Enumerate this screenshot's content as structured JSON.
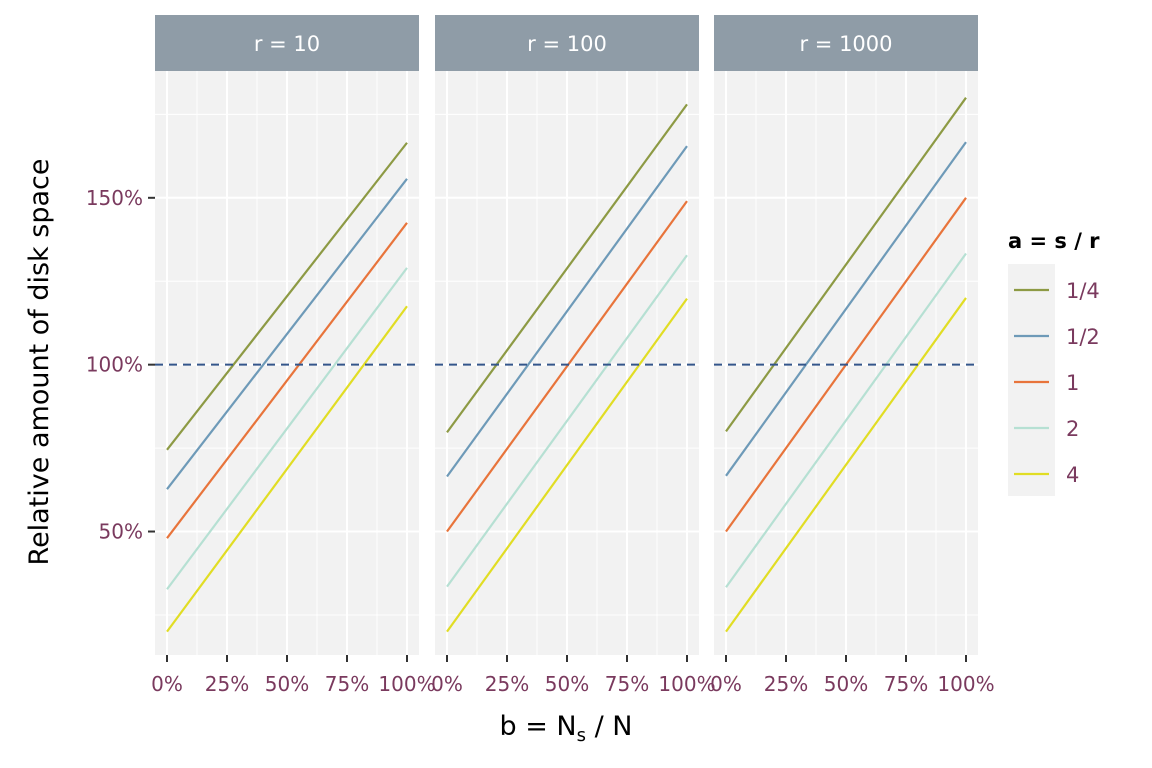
{
  "chart_data": {
    "type": "line",
    "xlabel_main": "b = N",
    "xlabel_sub": "s",
    "xlabel_tail": " / N",
    "ylabel": "Relative amount of disk space",
    "x_ticks": [
      "0%",
      "25%",
      "50%",
      "75%",
      "100%"
    ],
    "y_ticks": [
      "50%",
      "100%",
      "150%"
    ],
    "ylim": [
      0.13,
      1.88
    ],
    "xlim": [
      -0.05,
      1.05
    ],
    "reference_line": {
      "y": 1.0,
      "style": "dashed",
      "color": "#34568b"
    },
    "legend": {
      "title": "a = s / r",
      "entries": [
        {
          "label": "1/4",
          "color": "#8d9a44"
        },
        {
          "label": "1/2",
          "color": "#6e9ab8"
        },
        {
          "label": "1",
          "color": "#e8743b"
        },
        {
          "label": "2",
          "color": "#b6e0d3"
        },
        {
          "label": "4",
          "color": "#e1dd24"
        }
      ]
    },
    "panels": [
      {
        "label": "r = 10",
        "series": [
          {
            "name": "1/4",
            "x": [
              0,
              1
            ],
            "y": [
              0.745,
              1.665
            ]
          },
          {
            "name": "1/2",
            "x": [
              0,
              1
            ],
            "y": [
              0.627,
              1.557
            ]
          },
          {
            "name": "1",
            "x": [
              0,
              1
            ],
            "y": [
              0.48,
              1.425
            ]
          },
          {
            "name": "2",
            "x": [
              0,
              1
            ],
            "y": [
              0.327,
              1.29
            ]
          },
          {
            "name": "4",
            "x": [
              0,
              1
            ],
            "y": [
              0.2,
              1.175
            ]
          }
        ]
      },
      {
        "label": "r = 100",
        "series": [
          {
            "name": "1/4",
            "x": [
              0,
              1
            ],
            "y": [
              0.797,
              1.78
            ]
          },
          {
            "name": "1/2",
            "x": [
              0,
              1
            ],
            "y": [
              0.665,
              1.655
            ]
          },
          {
            "name": "1",
            "x": [
              0,
              1
            ],
            "y": [
              0.5,
              1.49
            ]
          },
          {
            "name": "2",
            "x": [
              0,
              1
            ],
            "y": [
              0.335,
              1.328
            ]
          },
          {
            "name": "4",
            "x": [
              0,
              1
            ],
            "y": [
              0.2,
              1.198
            ]
          }
        ]
      },
      {
        "label": "r = 1000",
        "series": [
          {
            "name": "1/4",
            "x": [
              0,
              1
            ],
            "y": [
              0.8,
              1.8
            ]
          },
          {
            "name": "1/2",
            "x": [
              0,
              1
            ],
            "y": [
              0.667,
              1.667
            ]
          },
          {
            "name": "1",
            "x": [
              0,
              1
            ],
            "y": [
              0.5,
              1.5
            ]
          },
          {
            "name": "2",
            "x": [
              0,
              1
            ],
            "y": [
              0.333,
              1.333
            ]
          },
          {
            "name": "4",
            "x": [
              0,
              1
            ],
            "y": [
              0.2,
              1.2
            ]
          }
        ]
      }
    ],
    "panel_background": "#f2f2f2",
    "strip_background": "#8f9ca7",
    "grid": true
  }
}
